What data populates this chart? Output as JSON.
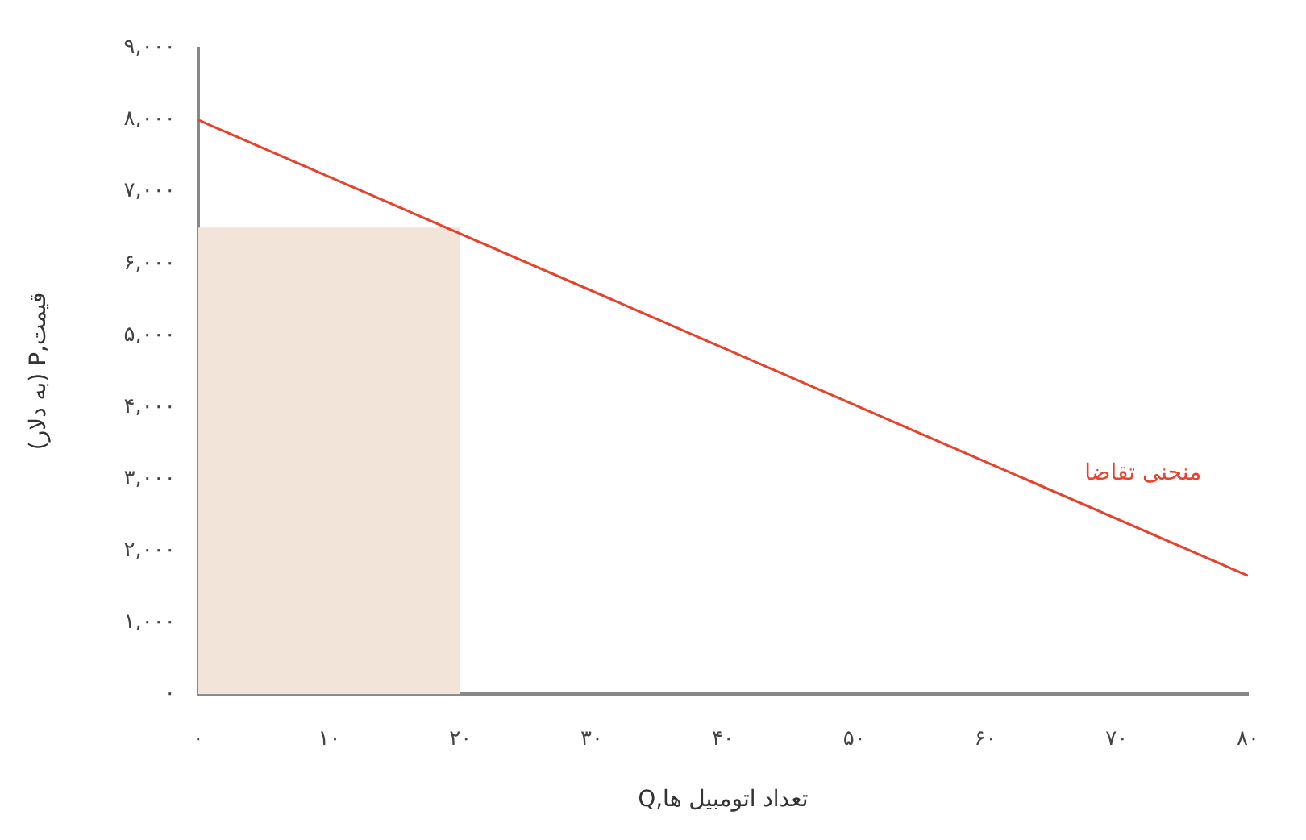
{
  "chart_data": {
    "type": "line",
    "xlabel": "Q,تعداد اتومبیل ها",
    "ylabel": "(به دلار) P,قیمت",
    "xlim": [
      0,
      80
    ],
    "ylim": [
      0,
      9000
    ],
    "xticks": [
      {
        "value": 0,
        "label": "۰"
      },
      {
        "value": 10,
        "label": "۱۰"
      },
      {
        "value": 20,
        "label": "۲۰"
      },
      {
        "value": 30,
        "label": "۳۰"
      },
      {
        "value": 40,
        "label": "۴۰"
      },
      {
        "value": 50,
        "label": "۵۰"
      },
      {
        "value": 60,
        "label": "۶۰"
      },
      {
        "value": 70,
        "label": "۷۰"
      },
      {
        "value": 80,
        "label": "۸۰"
      }
    ],
    "yticks": [
      {
        "value": 0,
        "label": "۰"
      },
      {
        "value": 1000,
        "label": "۱,۰۰۰"
      },
      {
        "value": 2000,
        "label": "۲,۰۰۰"
      },
      {
        "value": 3000,
        "label": "۳,۰۰۰"
      },
      {
        "value": 4000,
        "label": "۴,۰۰۰"
      },
      {
        "value": 5000,
        "label": "۵,۰۰۰"
      },
      {
        "value": 6000,
        "label": "۶,۰۰۰"
      },
      {
        "value": 7000,
        "label": "۷,۰۰۰"
      },
      {
        "value": 8000,
        "label": "۸,۰۰۰"
      },
      {
        "value": 9000,
        "label": "۹,۰۰۰"
      }
    ],
    "grid": false,
    "legend": false,
    "series": [
      {
        "type": "area",
        "color": "#f2e4d9",
        "x": [
          0,
          20
        ],
        "values": [
          6500,
          6500
        ]
      },
      {
        "name": "منحنی تقاضا",
        "color": "#e8412c",
        "x": [
          0,
          80
        ],
        "values": [
          8000,
          1650
        ]
      }
    ]
  }
}
